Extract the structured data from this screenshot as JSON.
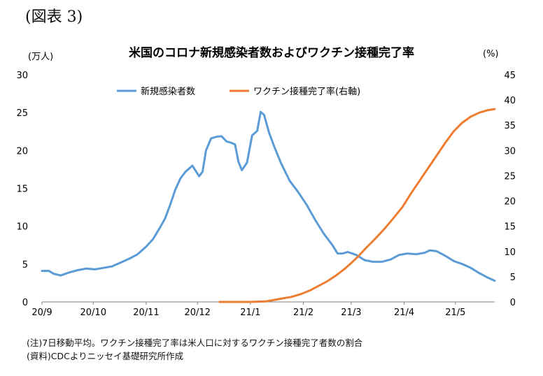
{
  "figure_label": "(図表 3)",
  "notes": {
    "note": "(注)7日移動平均。ワクチン接種完了率は米人口に対するワクチン接種完了者数の割合",
    "source": "(資料)CDCよりニッセイ基礎研究所作成"
  },
  "colors": {
    "series1": "#5B9BD5",
    "series2": "#ED7D31",
    "axis": "#7f7f7f"
  },
  "chart_data": {
    "type": "line",
    "title": "米国のコロナ新規感染者数およびワクチン接種完了率",
    "ylabel": "(万人)",
    "y2label": "(%)",
    "ylim": [
      0,
      30
    ],
    "y2lim": [
      0,
      45
    ],
    "yticks": [
      "0",
      "5",
      "10",
      "15",
      "20",
      "25",
      "30"
    ],
    "y2ticks": [
      "0",
      "5",
      "10",
      "15",
      "20",
      "25",
      "30",
      "35",
      "40",
      "45"
    ],
    "x_range": [
      "2020-09-01",
      "2021-05-24"
    ],
    "xticks": [
      {
        "date": "2020-09-01",
        "label": "20/9"
      },
      {
        "date": "2020-10-01",
        "label": "20/10"
      },
      {
        "date": "2020-11-01",
        "label": "20/11"
      },
      {
        "date": "2020-12-01",
        "label": "20/12"
      },
      {
        "date": "2021-01-01",
        "label": "21/1"
      },
      {
        "date": "2021-02-01",
        "label": "21/2"
      },
      {
        "date": "2021-03-01",
        "label": "21/3"
      },
      {
        "date": "2021-04-01",
        "label": "21/4"
      },
      {
        "date": "2021-05-01",
        "label": "21/5"
      }
    ],
    "legend_placement": "top-center",
    "grid": false,
    "series": [
      {
        "name": "新規感染者数",
        "axis": "left",
        "points": [
          [
            "2020-09-01",
            4.1
          ],
          [
            "2020-09-05",
            4.1
          ],
          [
            "2020-09-08",
            3.7
          ],
          [
            "2020-09-12",
            3.5
          ],
          [
            "2020-09-17",
            3.9
          ],
          [
            "2020-09-22",
            4.2
          ],
          [
            "2020-09-27",
            4.4
          ],
          [
            "2020-10-02",
            4.3
          ],
          [
            "2020-10-07",
            4.5
          ],
          [
            "2020-10-12",
            4.7
          ],
          [
            "2020-10-17",
            5.2
          ],
          [
            "2020-10-22",
            5.7
          ],
          [
            "2020-10-27",
            6.3
          ],
          [
            "2020-11-01",
            7.3
          ],
          [
            "2020-11-05",
            8.3
          ],
          [
            "2020-11-09",
            9.8
          ],
          [
            "2020-11-12",
            11.0
          ],
          [
            "2020-11-15",
            12.8
          ],
          [
            "2020-11-18",
            14.8
          ],
          [
            "2020-11-21",
            16.3
          ],
          [
            "2020-11-24",
            17.2
          ],
          [
            "2020-11-28",
            18.0
          ],
          [
            "2020-12-02",
            16.6
          ],
          [
            "2020-12-04",
            17.2
          ],
          [
            "2020-12-06",
            20.0
          ],
          [
            "2020-12-09",
            21.6
          ],
          [
            "2020-12-12",
            21.8
          ],
          [
            "2020-12-15",
            21.9
          ],
          [
            "2020-12-18",
            21.2
          ],
          [
            "2020-12-21",
            21.0
          ],
          [
            "2020-12-23",
            20.8
          ],
          [
            "2020-12-25",
            18.5
          ],
          [
            "2020-12-27",
            17.4
          ],
          [
            "2020-12-30",
            18.4
          ],
          [
            "2021-01-02",
            22.0
          ],
          [
            "2021-01-05",
            22.6
          ],
          [
            "2021-01-07",
            25.1
          ],
          [
            "2021-01-09",
            24.7
          ],
          [
            "2021-01-12",
            22.3
          ],
          [
            "2021-01-15",
            20.5
          ],
          [
            "2021-01-19",
            18.3
          ],
          [
            "2021-01-24",
            16.0
          ],
          [
            "2021-01-29",
            14.5
          ],
          [
            "2021-02-03",
            12.8
          ],
          [
            "2021-02-08",
            10.8
          ],
          [
            "2021-02-13",
            9.0
          ],
          [
            "2021-02-18",
            7.5
          ],
          [
            "2021-02-21",
            6.4
          ],
          [
            "2021-02-24",
            6.4
          ],
          [
            "2021-02-27",
            6.6
          ],
          [
            "2021-03-04",
            6.2
          ],
          [
            "2021-03-09",
            5.5
          ],
          [
            "2021-03-14",
            5.3
          ],
          [
            "2021-03-19",
            5.3
          ],
          [
            "2021-03-24",
            5.6
          ],
          [
            "2021-03-29",
            6.2
          ],
          [
            "2021-04-03",
            6.4
          ],
          [
            "2021-04-08",
            6.3
          ],
          [
            "2021-04-13",
            6.5
          ],
          [
            "2021-04-16",
            6.8
          ],
          [
            "2021-04-20",
            6.7
          ],
          [
            "2021-04-25",
            6.1
          ],
          [
            "2021-04-30",
            5.4
          ],
          [
            "2021-05-05",
            5.0
          ],
          [
            "2021-05-10",
            4.5
          ],
          [
            "2021-05-15",
            3.8
          ],
          [
            "2021-05-20",
            3.2
          ],
          [
            "2021-05-24",
            2.8
          ]
        ]
      },
      {
        "name": "ワクチン接種完了率(右軸)",
        "axis": "right",
        "points": [
          [
            "2020-12-14",
            0.0
          ],
          [
            "2020-12-31",
            0.0
          ],
          [
            "2021-01-10",
            0.1
          ],
          [
            "2021-01-15",
            0.4
          ],
          [
            "2021-01-20",
            0.7
          ],
          [
            "2021-01-25",
            1.0
          ],
          [
            "2021-01-31",
            1.6
          ],
          [
            "2021-02-05",
            2.3
          ],
          [
            "2021-02-10",
            3.2
          ],
          [
            "2021-02-15",
            4.1
          ],
          [
            "2021-02-20",
            5.2
          ],
          [
            "2021-02-25",
            6.5
          ],
          [
            "2021-03-01",
            7.7
          ],
          [
            "2021-03-05",
            9.0
          ],
          [
            "2021-03-10",
            10.8
          ],
          [
            "2021-03-15",
            12.5
          ],
          [
            "2021-03-20",
            14.3
          ],
          [
            "2021-03-25",
            16.3
          ],
          [
            "2021-03-31",
            18.8
          ],
          [
            "2021-04-05",
            21.5
          ],
          [
            "2021-04-10",
            24.0
          ],
          [
            "2021-04-15",
            26.5
          ],
          [
            "2021-04-20",
            29.0
          ],
          [
            "2021-04-25",
            31.5
          ],
          [
            "2021-04-30",
            33.8
          ],
          [
            "2021-05-05",
            35.5
          ],
          [
            "2021-05-10",
            36.7
          ],
          [
            "2021-05-15",
            37.5
          ],
          [
            "2021-05-20",
            38.0
          ],
          [
            "2021-05-24",
            38.2
          ]
        ]
      }
    ]
  }
}
